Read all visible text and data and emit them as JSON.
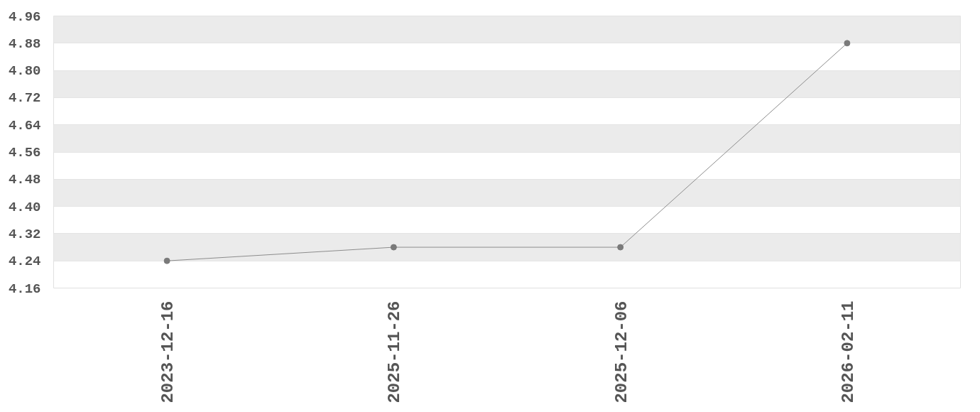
{
  "chart_data": {
    "type": "line",
    "categories": [
      "2023-12-16",
      "2025-11-26",
      "2025-12-06",
      "2026-02-11"
    ],
    "values": [
      4.24,
      4.28,
      4.28,
      4.88
    ],
    "color": "#7a7a7a",
    "ylim": [
      4.16,
      4.96
    ],
    "yticks": [
      4.16,
      4.24,
      4.32,
      {
        "value": 4.4,
        "label": "4.40"
      },
      4.48,
      4.56,
      4.64,
      4.72,
      {
        "value": 4.8,
        "label": "4.80"
      },
      4.88,
      4.96
    ],
    "grid": "y",
    "marker": "circle",
    "line_style": "solid"
  }
}
